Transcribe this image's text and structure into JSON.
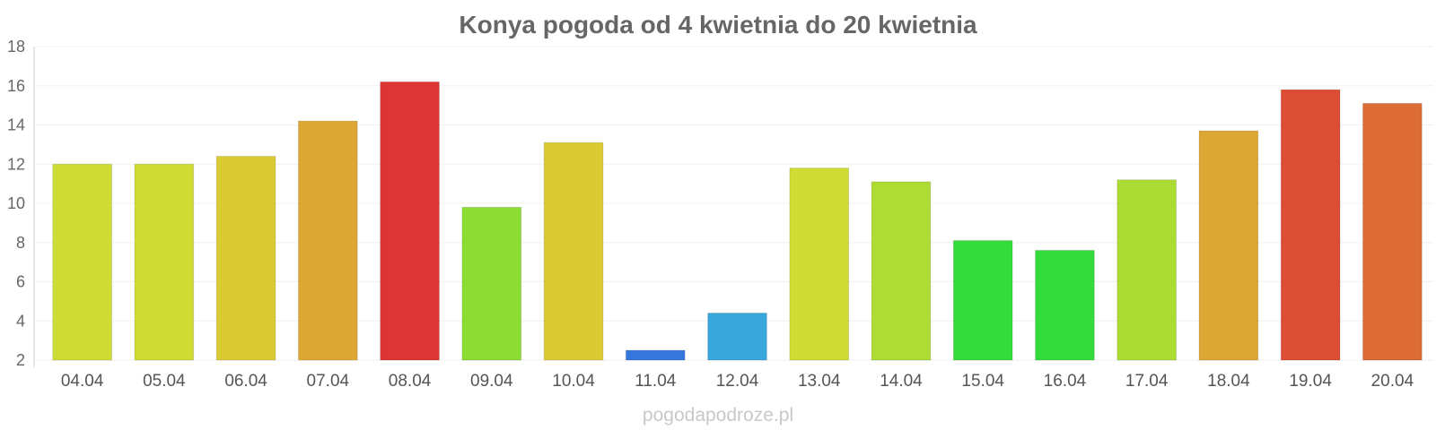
{
  "chart_data": {
    "type": "bar",
    "title": "Konya pogoda od 4 kwietnia do 20 kwietnia",
    "xlabel": "",
    "ylabel": "",
    "categories": [
      "04.04",
      "05.04",
      "06.04",
      "07.04",
      "08.04",
      "09.04",
      "10.04",
      "11.04",
      "12.04",
      "13.04",
      "14.04",
      "15.04",
      "16.04",
      "17.04",
      "18.04",
      "19.04",
      "20.04"
    ],
    "values": [
      12.0,
      12.0,
      12.4,
      14.2,
      16.2,
      9.8,
      13.1,
      2.5,
      4.4,
      11.8,
      11.1,
      8.1,
      7.6,
      11.2,
      13.7,
      15.8,
      15.1
    ],
    "colors": [
      "#cedc33",
      "#cedc33",
      "#dbcb33",
      "#dca833",
      "#dc3533",
      "#8bdc33",
      "#dbca33",
      "#3477dc",
      "#38a7dc",
      "#cedc33",
      "#addc33",
      "#33dc3a",
      "#33dc3a",
      "#aadc33",
      "#dca833",
      "#dc4d33",
      "#dc6c33"
    ],
    "ylim": [
      2,
      18
    ],
    "yticks": [
      2,
      4,
      6,
      8,
      10,
      12,
      14,
      16,
      18
    ],
    "grid": true,
    "legend": "none"
  },
  "watermark": "pogodapodroze.pl"
}
